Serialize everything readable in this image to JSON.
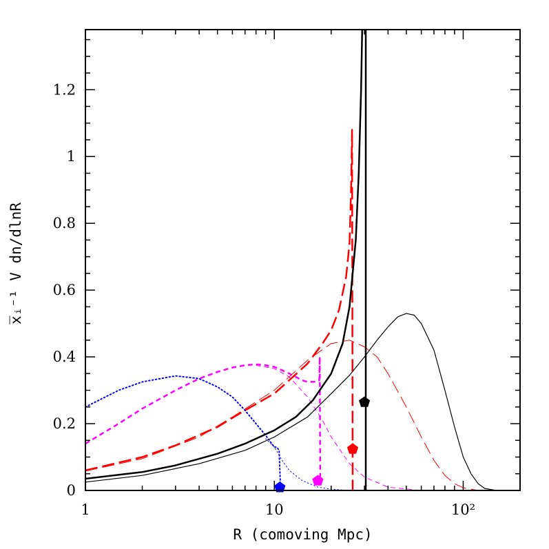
{
  "chart_data": {
    "type": "line",
    "title": "",
    "xlabel": "R (comoving Mpc)",
    "ylabel": "x̅ᵢ⁻¹ V dn/dlnR",
    "xscale": "log",
    "xlim": [
      1,
      200
    ],
    "ylim": [
      0,
      1.38
    ],
    "x_ticks": [
      {
        "value": 1,
        "label": "1"
      },
      {
        "value": 10,
        "label": "10"
      },
      {
        "value": 100,
        "label": "10²"
      }
    ],
    "y_ticks": [
      {
        "value": 0,
        "label": "0"
      },
      {
        "value": 0.2,
        "label": "0.2"
      },
      {
        "value": 0.4,
        "label": "0.4"
      },
      {
        "value": 0.6,
        "label": "0.6"
      },
      {
        "value": 0.8,
        "label": "0.8"
      },
      {
        "value": 1.0,
        "label": "1"
      },
      {
        "value": 1.2,
        "label": "1.2"
      }
    ],
    "grid": false,
    "legend": "none",
    "series": [
      {
        "color": "#0000ff",
        "style": "dotted",
        "width": 2,
        "points": [
          [
            1,
            0.25
          ],
          [
            1.5,
            0.3
          ],
          [
            2,
            0.325
          ],
          [
            3,
            0.343
          ],
          [
            4,
            0.335
          ],
          [
            5,
            0.31
          ],
          [
            6,
            0.28
          ],
          [
            7,
            0.24
          ],
          [
            8,
            0.2
          ],
          [
            9,
            0.165
          ],
          [
            10,
            0.13
          ],
          [
            10.3,
            0.13
          ],
          [
            10.6,
            0.12
          ],
          [
            10.8,
            0.0
          ]
        ]
      },
      {
        "color": "#0000ff",
        "style": "dotted",
        "width": 1,
        "points": [
          [
            9,
            0.155
          ],
          [
            10,
            0.13
          ],
          [
            11,
            0.09
          ],
          [
            12,
            0.06
          ],
          [
            14,
            0.03
          ],
          [
            17,
            0.01
          ],
          [
            20,
            0.004
          ],
          [
            25,
            0.0
          ]
        ]
      },
      {
        "color": "#ff00ff",
        "style": "dashed",
        "width": 2.5,
        "points": [
          [
            1,
            0.14
          ],
          [
            1.5,
            0.2
          ],
          [
            2,
            0.245
          ],
          [
            3,
            0.3
          ],
          [
            4,
            0.335
          ],
          [
            5,
            0.355
          ],
          [
            6,
            0.368
          ],
          [
            7,
            0.375
          ],
          [
            8,
            0.378
          ],
          [
            9,
            0.375
          ],
          [
            10,
            0.37
          ],
          [
            11,
            0.36
          ],
          [
            12,
            0.35
          ],
          [
            13,
            0.34
          ],
          [
            14,
            0.33
          ],
          [
            15,
            0.325
          ],
          [
            16,
            0.325
          ],
          [
            17,
            0.327
          ],
          [
            17.3,
            0.33
          ],
          [
            17.4,
            0.4
          ],
          [
            17.5,
            0.02
          ]
        ]
      },
      {
        "color": "#ff00ff",
        "style": "dashed",
        "width": 1,
        "points": [
          [
            8,
            0.375
          ],
          [
            10,
            0.365
          ],
          [
            12,
            0.34
          ],
          [
            15,
            0.28
          ],
          [
            18,
            0.21
          ],
          [
            20,
            0.16
          ],
          [
            25,
            0.08
          ],
          [
            30,
            0.04
          ],
          [
            40,
            0.01
          ],
          [
            60,
            0.0
          ]
        ]
      },
      {
        "color": "#ff0000",
        "style": "longdash",
        "width": 2.5,
        "points": [
          [
            1,
            0.06
          ],
          [
            2,
            0.1
          ],
          [
            3,
            0.135
          ],
          [
            5,
            0.19
          ],
          [
            7,
            0.24
          ],
          [
            10,
            0.29
          ],
          [
            12,
            0.33
          ],
          [
            15,
            0.38
          ],
          [
            18,
            0.44
          ],
          [
            20,
            0.48
          ],
          [
            22,
            0.54
          ],
          [
            24,
            0.64
          ],
          [
            25,
            0.74
          ],
          [
            25.5,
            0.9
          ],
          [
            25.8,
            1.08
          ],
          [
            26,
            0.0
          ]
        ]
      },
      {
        "color": "#ff0000",
        "style": "longdash",
        "width": 1,
        "points": [
          [
            1,
            0.058
          ],
          [
            2,
            0.095
          ],
          [
            4,
            0.16
          ],
          [
            6,
            0.22
          ],
          [
            10,
            0.3
          ],
          [
            15,
            0.39
          ],
          [
            20,
            0.44
          ],
          [
            25,
            0.45
          ],
          [
            30,
            0.43
          ],
          [
            35,
            0.4
          ],
          [
            40,
            0.35
          ],
          [
            50,
            0.25
          ],
          [
            60,
            0.16
          ],
          [
            70,
            0.09
          ],
          [
            80,
            0.045
          ],
          [
            90,
            0.02
          ],
          [
            100,
            0.008
          ],
          [
            120,
            0.0
          ]
        ]
      },
      {
        "color": "#000000",
        "style": "solid",
        "width": 2.5,
        "points": [
          [
            1,
            0.035
          ],
          [
            2,
            0.055
          ],
          [
            3,
            0.075
          ],
          [
            5,
            0.11
          ],
          [
            7,
            0.14
          ],
          [
            10,
            0.18
          ],
          [
            13,
            0.22
          ],
          [
            16,
            0.27
          ],
          [
            20,
            0.35
          ],
          [
            23,
            0.44
          ],
          [
            25,
            0.55
          ],
          [
            27,
            0.75
          ],
          [
            28,
            0.95
          ],
          [
            28.8,
            1.2
          ],
          [
            29.2,
            1.38
          ]
        ]
      },
      {
        "color": "#000000",
        "style": "solid",
        "width": 2.5,
        "points": [
          [
            30.5,
            1.38
          ],
          [
            30.5,
            0.0
          ]
        ]
      },
      {
        "color": "#000000",
        "style": "solid",
        "width": 1.2,
        "points": [
          [
            1,
            0.025
          ],
          [
            2,
            0.045
          ],
          [
            4,
            0.08
          ],
          [
            7,
            0.12
          ],
          [
            10,
            0.16
          ],
          [
            15,
            0.22
          ],
          [
            20,
            0.29
          ],
          [
            25,
            0.345
          ],
          [
            30,
            0.4
          ],
          [
            35,
            0.45
          ],
          [
            40,
            0.49
          ],
          [
            45,
            0.52
          ],
          [
            50,
            0.53
          ],
          [
            55,
            0.525
          ],
          [
            60,
            0.5
          ],
          [
            70,
            0.42
          ],
          [
            80,
            0.3
          ],
          [
            90,
            0.19
          ],
          [
            100,
            0.1
          ],
          [
            110,
            0.05
          ],
          [
            120,
            0.02
          ],
          [
            130,
            0.006
          ],
          [
            150,
            0.0
          ],
          [
            200,
            0.0
          ]
        ]
      }
    ],
    "markers": [
      {
        "x": 10.7,
        "y": 0.005,
        "color": "#0000ff",
        "shape": "pentagon"
      },
      {
        "x": 17.0,
        "y": 0.025,
        "color": "#ff00ff",
        "shape": "pentagon"
      },
      {
        "x": 26.0,
        "y": 0.12,
        "color": "#ff0000",
        "shape": "pentagon"
      },
      {
        "x": 30.0,
        "y": 0.26,
        "color": "#000000",
        "shape": "pentagon"
      }
    ]
  }
}
